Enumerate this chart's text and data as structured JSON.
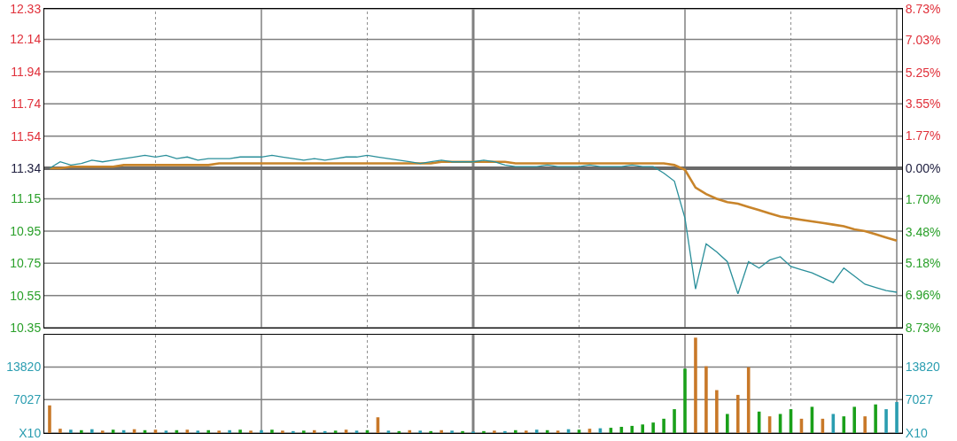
{
  "chart_data": [
    {
      "type": "line",
      "categories": [
        null,
        null,
        null,
        null,
        null,
        null,
        null,
        null,
        null,
        null,
        null,
        null,
        null,
        null,
        null,
        null,
        null,
        null,
        null,
        null,
        null,
        null,
        null,
        null,
        null,
        null,
        null,
        null,
        null,
        null,
        null,
        null,
        null,
        null,
        null,
        null,
        null,
        null,
        null,
        null,
        null,
        null,
        null,
        null,
        null,
        null,
        null,
        null,
        null,
        null,
        null,
        null,
        null,
        null,
        null,
        null,
        null,
        null,
        null,
        null,
        null,
        null,
        null,
        null,
        null,
        null,
        null,
        null,
        null,
        null,
        null,
        null,
        null,
        null,
        null,
        null,
        null,
        null,
        null,
        null,
        null
      ],
      "series": [
        {
          "color": "#2a8f9a",
          "values": [
            11.34,
            11.38,
            11.36,
            11.37,
            11.39,
            11.38,
            11.39,
            11.4,
            11.41,
            11.42,
            11.41,
            11.42,
            11.4,
            11.41,
            11.39,
            11.4,
            11.4,
            11.4,
            11.41,
            11.41,
            11.41,
            11.42,
            11.41,
            11.4,
            11.39,
            11.4,
            11.39,
            11.4,
            11.41,
            11.41,
            11.42,
            11.41,
            11.4,
            11.39,
            11.38,
            11.37,
            11.38,
            11.39,
            11.38,
            11.38,
            11.38,
            11.39,
            11.38,
            11.36,
            11.35,
            11.35,
            11.35,
            11.36,
            11.35,
            11.35,
            11.35,
            11.36,
            11.35,
            11.35,
            11.35,
            11.36,
            11.35,
            11.35,
            11.31,
            11.26,
            11.03,
            10.59,
            10.87,
            10.82,
            10.76,
            10.56,
            10.76,
            10.72,
            10.77,
            10.79,
            10.73,
            10.71,
            10.69,
            10.66,
            10.63,
            10.72,
            10.67,
            10.62,
            10.6,
            10.58,
            10.57
          ]
        },
        {
          "color": "#c8842a",
          "values": [
            11.34,
            11.34,
            11.35,
            11.35,
            11.35,
            11.35,
            11.35,
            11.36,
            11.36,
            11.36,
            11.36,
            11.36,
            11.36,
            11.36,
            11.36,
            11.36,
            11.37,
            11.37,
            11.37,
            11.37,
            11.37,
            11.37,
            11.37,
            11.37,
            11.37,
            11.37,
            11.37,
            11.37,
            11.37,
            11.37,
            11.37,
            11.37,
            11.37,
            11.37,
            11.37,
            11.37,
            11.37,
            11.38,
            11.38,
            11.38,
            11.38,
            11.38,
            11.38,
            11.38,
            11.37,
            11.37,
            11.37,
            11.37,
            11.37,
            11.37,
            11.37,
            11.37,
            11.37,
            11.37,
            11.37,
            11.37,
            11.37,
            11.37,
            11.37,
            11.36,
            11.33,
            11.22,
            11.18,
            11.15,
            11.13,
            11.12,
            11.1,
            11.08,
            11.06,
            11.04,
            11.03,
            11.02,
            11.01,
            11.0,
            10.99,
            10.98,
            10.96,
            10.95,
            10.93,
            10.91,
            10.89
          ]
        }
      ],
      "ylim": [
        10.35,
        12.33
      ],
      "yticks": [
        10.35,
        10.55,
        10.75,
        10.95,
        11.15,
        11.34,
        11.54,
        11.74,
        11.94,
        12.14,
        12.33
      ],
      "y2lim": [
        -8.73,
        8.73
      ],
      "y2ticks": [
        {
          "value": -8.73,
          "label": "8.73%"
        },
        {
          "value": -6.96,
          "label": "6.96%"
        },
        {
          "value": -5.18,
          "label": "5.18%"
        },
        {
          "value": -3.48,
          "label": "3.48%"
        },
        {
          "value": -1.7,
          "label": "1.70%"
        },
        {
          "value": 0,
          "label": "0.00%"
        },
        {
          "value": 1.77,
          "label": "1.77%"
        },
        {
          "value": 3.55,
          "label": "3.55%"
        },
        {
          "value": 5.25,
          "label": "5.25%"
        },
        {
          "value": 7.03,
          "label": "7.03%"
        },
        {
          "value": 8.73,
          "label": "8.73%"
        }
      ],
      "ref_lines": [
        {
          "axis": "y",
          "value": 11.34,
          "color": "#6a6a6a"
        }
      ],
      "grid": true,
      "legend": false,
      "tick_labels": "y",
      "line_style": "solid",
      "marker": "none"
    },
    {
      "type": "bar",
      "categories": [
        null,
        null,
        null,
        null,
        null,
        null,
        null,
        null,
        null,
        null,
        null,
        null,
        null,
        null,
        null,
        null,
        null,
        null,
        null,
        null,
        null,
        null,
        null,
        null,
        null,
        null,
        null,
        null,
        null,
        null,
        null,
        null,
        null,
        null,
        null,
        null,
        null,
        null,
        null,
        null,
        null,
        null,
        null,
        null,
        null,
        null,
        null,
        null,
        null,
        null,
        null,
        null,
        null,
        null,
        null,
        null,
        null,
        null,
        null,
        null,
        null,
        null,
        null,
        null,
        null,
        null,
        null,
        null,
        null,
        null,
        null,
        null,
        null,
        null,
        null,
        null,
        null,
        null,
        null,
        null,
        null
      ],
      "values": [
        5800,
        900,
        700,
        600,
        800,
        500,
        700,
        600,
        800,
        600,
        700,
        500,
        600,
        700,
        500,
        600,
        500,
        600,
        700,
        500,
        600,
        700,
        500,
        400,
        500,
        600,
        400,
        500,
        700,
        500,
        600,
        3300,
        500,
        400,
        600,
        500,
        400,
        600,
        500,
        400,
        300,
        400,
        500,
        400,
        600,
        500,
        700,
        600,
        500,
        800,
        700,
        900,
        1000,
        1100,
        1300,
        1500,
        1800,
        2200,
        3000,
        5000,
        13500,
        20000,
        14000,
        9000,
        4000,
        8000,
        13800,
        4500,
        3500,
        4000,
        5000,
        3000,
        5500,
        3000,
        4000,
        3500,
        5500,
        3500,
        6000,
        5000,
        6500
      ],
      "colors": [
        "#c87828",
        "#c87828",
        "#2a9db0",
        "#1aa01a",
        "#2a9db0",
        "#c87828",
        "#1aa01a",
        "#2a9db0",
        "#c87828",
        "#1aa01a",
        "#c87828",
        "#2a9db0",
        "#1aa01a",
        "#c87828",
        "#2a9db0",
        "#1aa01a",
        "#c87828",
        "#2a9db0",
        "#1aa01a",
        "#c87828",
        "#2a9db0",
        "#1aa01a",
        "#c87828",
        "#2a9db0",
        "#1aa01a",
        "#c87828",
        "#2a9db0",
        "#1aa01a",
        "#c87828",
        "#2a9db0",
        "#1aa01a",
        "#c87828",
        "#2a9db0",
        "#1aa01a",
        "#c87828",
        "#2a9db0",
        "#1aa01a",
        "#c87828",
        "#2a9db0",
        "#1aa01a",
        "#2a9db0",
        "#1aa01a",
        "#c87828",
        "#2a9db0",
        "#1aa01a",
        "#c87828",
        "#2a9db0",
        "#1aa01a",
        "#c87828",
        "#2a9db0",
        "#1aa01a",
        "#c87828",
        "#2a9db0",
        "#1aa01a",
        "#1aa01a",
        "#1aa01a",
        "#1aa01a",
        "#1aa01a",
        "#1aa01a",
        "#1aa01a",
        "#1aa01a",
        "#c87828",
        "#c87828",
        "#c87828",
        "#1aa01a",
        "#c87828",
        "#c87828",
        "#1aa01a",
        "#c87828",
        "#1aa01a",
        "#1aa01a",
        "#c87828",
        "#1aa01a",
        "#c87828",
        "#2a9db0",
        "#1aa01a",
        "#1aa01a",
        "#c87828",
        "#1aa01a",
        "#2a9db0",
        "#2a9db0"
      ],
      "ylim": [
        0,
        20613
      ],
      "yticks": [
        {
          "value": 0,
          "label": "X10"
        },
        7027,
        13820
      ],
      "y2lim": [
        0,
        20613
      ],
      "y2ticks": [
        {
          "value": 0,
          "label": "X10"
        },
        7027,
        13820
      ],
      "grid": true,
      "legend": false,
      "tick_labels": "y"
    }
  ]
}
